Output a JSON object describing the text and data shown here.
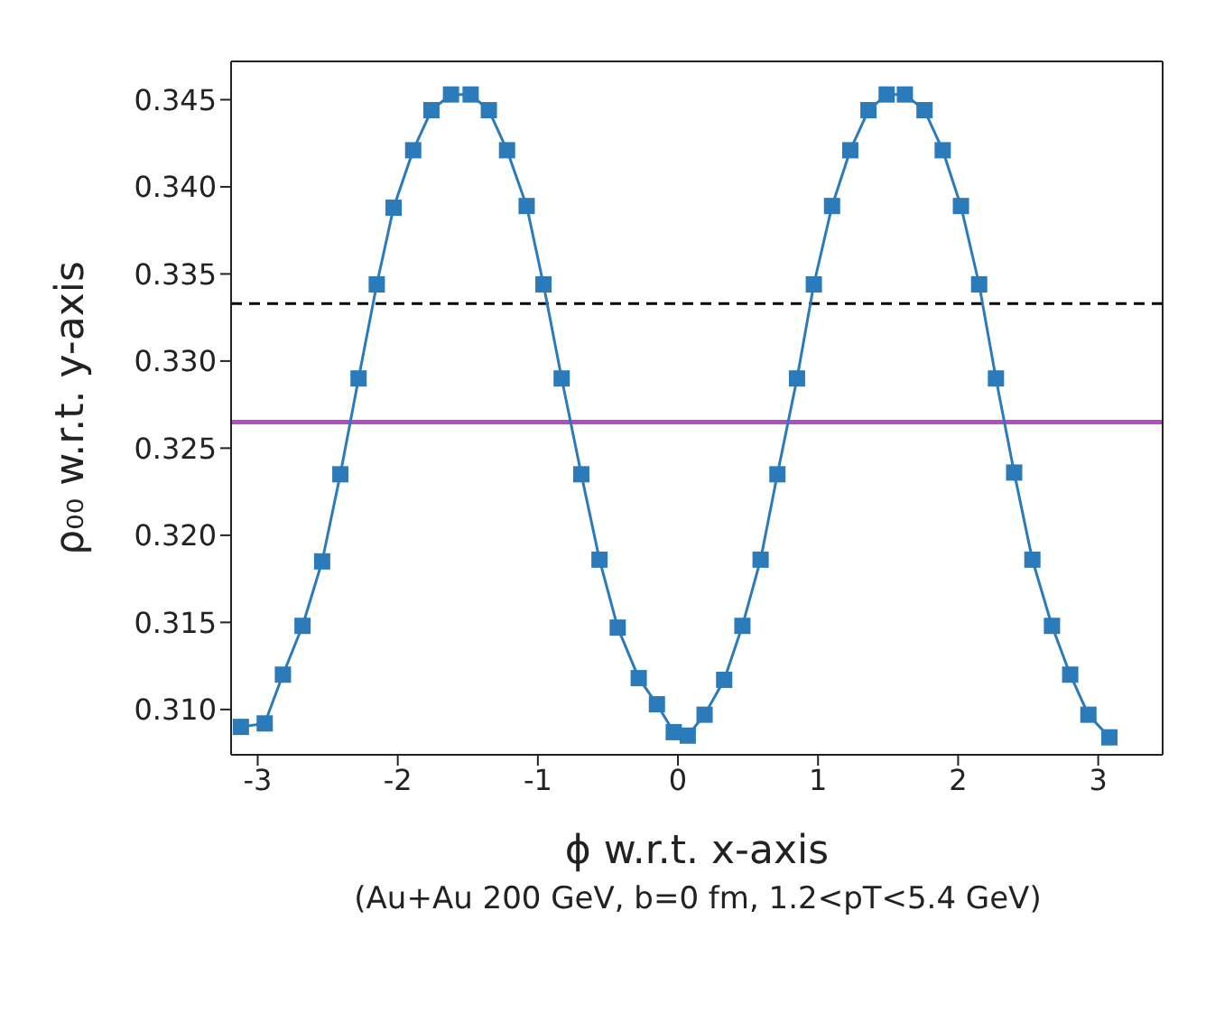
{
  "chart_data": {
    "type": "line",
    "xlabel": "ϕ w.r.t. x-axis",
    "ylabel": "ρ₀₀ w.r.t. y-axis",
    "annotations": [
      "(Au+Au 200 GeV, b=0 fm, 1.2<pT<5.4 GeV)"
    ],
    "x": [
      -3.12,
      -2.95,
      -2.82,
      -2.68,
      -2.54,
      -2.41,
      -2.28,
      -2.15,
      -2.03,
      -1.89,
      -1.76,
      -1.62,
      -1.48,
      -1.35,
      -1.22,
      -1.08,
      -0.96,
      -0.83,
      -0.69,
      -0.56,
      -0.43,
      -0.28,
      -0.15,
      -0.03,
      0.07,
      0.19,
      0.33,
      0.46,
      0.59,
      0.71,
      0.85,
      0.97,
      1.1,
      1.23,
      1.36,
      1.49,
      1.62,
      1.76,
      1.89,
      2.02,
      2.15,
      2.27,
      2.4,
      2.53,
      2.67,
      2.8,
      2.93,
      3.08
    ],
    "series": [
      {
        "color": "#2b7bba",
        "values": [
          0.309,
          0.3092,
          0.312,
          0.3148,
          0.3185,
          0.3235,
          0.329,
          0.3344,
          0.3388,
          0.3421,
          0.3444,
          0.3453,
          0.3453,
          0.3444,
          0.3421,
          0.3389,
          0.3344,
          0.329,
          0.3235,
          0.3186,
          0.3147,
          0.3118,
          0.3103,
          0.3087,
          0.3085,
          0.3097,
          0.3117,
          0.3148,
          0.3186,
          0.3235,
          0.329,
          0.3344,
          0.3389,
          0.3421,
          0.3444,
          0.3453,
          0.3453,
          0.3444,
          0.3421,
          0.3389,
          0.3344,
          0.329,
          0.3236,
          0.3186,
          0.3148,
          0.312,
          0.3097,
          0.3084
        ]
      }
    ],
    "marker": "square",
    "line_style": "solid",
    "grid": false,
    "legend": false,
    "xlim": [
      -3.19,
      3.46
    ],
    "xticks": [
      -3,
      -2,
      -1,
      0,
      1,
      2,
      3
    ],
    "ylim": [
      0.3074,
      0.3472
    ],
    "yticks": [
      {
        "value": 0.31,
        "label": "0.310"
      },
      {
        "value": 0.315,
        "label": "0.315"
      },
      {
        "value": 0.32,
        "label": "0.320"
      },
      {
        "value": 0.325,
        "label": "0.325"
      },
      {
        "value": 0.33,
        "label": "0.330"
      },
      {
        "value": 0.335,
        "label": "0.335"
      },
      {
        "value": 0.34,
        "label": "0.340"
      },
      {
        "value": 0.345,
        "label": "0.345"
      }
    ],
    "ref_lines": [
      {
        "axis": "y",
        "value": 0.3333,
        "color": "#000000",
        "line_style": "dashed"
      },
      {
        "axis": "y",
        "value": 0.3265,
        "color": "#b050c0",
        "line_style": "solid"
      }
    ]
  }
}
